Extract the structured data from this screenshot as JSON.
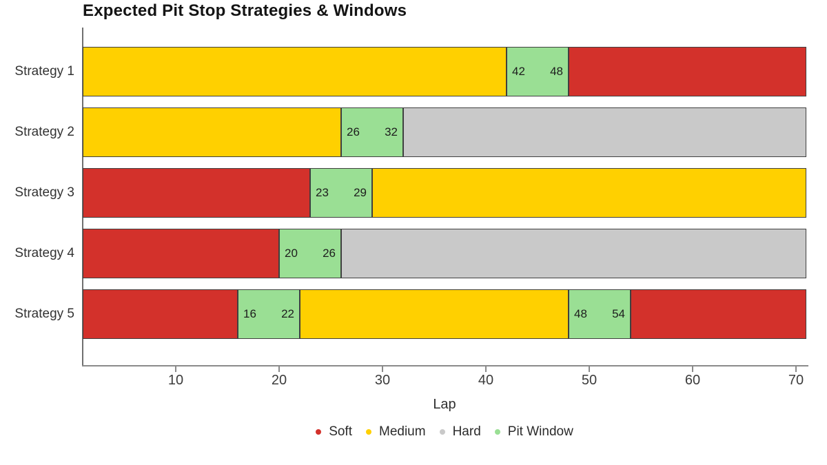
{
  "title": "Expected Pit Stop Strategies & Windows",
  "chart_data": {
    "type": "bar",
    "orientation": "horizontal",
    "title": "Expected Pit Stop Strategies & Windows",
    "xlabel": "Lap",
    "xlim": [
      1,
      71
    ],
    "xticks": [
      10,
      20,
      30,
      40,
      50,
      60,
      70
    ],
    "grid": false,
    "legend_position": "bottom-center",
    "categories": [
      "Strategy 1",
      "Strategy 2",
      "Strategy 3",
      "Strategy 4",
      "Strategy 5"
    ],
    "compound_colors": {
      "soft": "#d3312b",
      "medium": "#ffd000",
      "hard": "#c9c9c9",
      "pit": "#9adf94"
    },
    "legend": [
      {
        "key": "soft",
        "label": "Soft",
        "color": "#d3312b"
      },
      {
        "key": "medium",
        "label": "Medium",
        "color": "#ffd000"
      },
      {
        "key": "hard",
        "label": "Hard",
        "color": "#c9c9c9"
      },
      {
        "key": "pit",
        "label": "Pit Window",
        "color": "#9adf94"
      }
    ],
    "rows": [
      {
        "label": "Strategy 1",
        "segments": [
          {
            "compound": "medium",
            "start": 1,
            "end": 42
          },
          {
            "compound": "pit",
            "start": 42,
            "end": 48,
            "start_label": "42",
            "end_label": "48"
          },
          {
            "compound": "soft",
            "start": 48,
            "end": 71
          }
        ]
      },
      {
        "label": "Strategy 2",
        "segments": [
          {
            "compound": "medium",
            "start": 1,
            "end": 26
          },
          {
            "compound": "pit",
            "start": 26,
            "end": 32,
            "start_label": "26",
            "end_label": "32"
          },
          {
            "compound": "hard",
            "start": 32,
            "end": 71
          }
        ]
      },
      {
        "label": "Strategy 3",
        "segments": [
          {
            "compound": "soft",
            "start": 1,
            "end": 23
          },
          {
            "compound": "pit",
            "start": 23,
            "end": 29,
            "start_label": "23",
            "end_label": "29"
          },
          {
            "compound": "medium",
            "start": 29,
            "end": 71
          }
        ]
      },
      {
        "label": "Strategy 4",
        "segments": [
          {
            "compound": "soft",
            "start": 1,
            "end": 20
          },
          {
            "compound": "pit",
            "start": 20,
            "end": 26,
            "start_label": "20",
            "end_label": "26"
          },
          {
            "compound": "hard",
            "start": 26,
            "end": 71
          }
        ]
      },
      {
        "label": "Strategy 5",
        "segments": [
          {
            "compound": "soft",
            "start": 1,
            "end": 16
          },
          {
            "compound": "pit",
            "start": 16,
            "end": 22,
            "start_label": "16",
            "end_label": "22"
          },
          {
            "compound": "medium",
            "start": 22,
            "end": 48
          },
          {
            "compound": "pit",
            "start": 48,
            "end": 54,
            "start_label": "48",
            "end_label": "54"
          },
          {
            "compound": "soft",
            "start": 54,
            "end": 71
          }
        ]
      }
    ]
  }
}
